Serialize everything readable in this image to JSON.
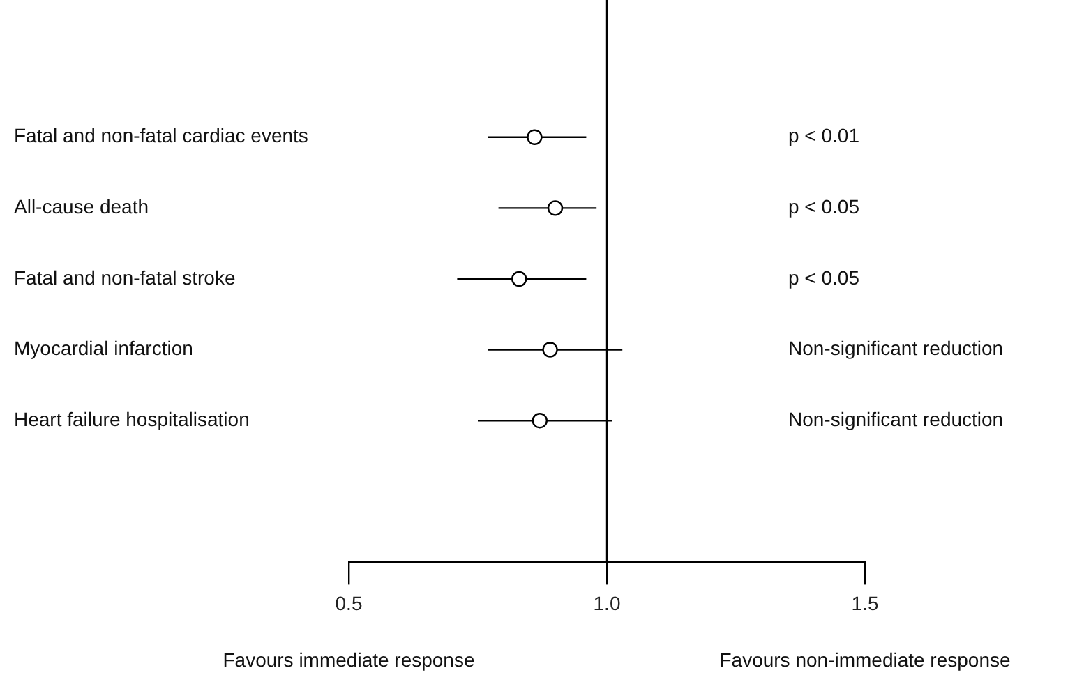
{
  "chart_data": {
    "type": "scatter",
    "orientation": "horizontal",
    "categories": [
      "Fatal and non-fatal cardiac events",
      "All-cause death",
      "Fatal and non-fatal stroke",
      "Myocardial infarction",
      "Heart failure hospitalisation"
    ],
    "values": [
      0.86,
      0.9,
      0.83,
      0.89,
      0.87
    ],
    "errors": [
      [
        0.77,
        0.96
      ],
      [
        0.79,
        0.98
      ],
      [
        0.71,
        0.96
      ],
      [
        0.77,
        1.03
      ],
      [
        0.75,
        1.01
      ]
    ],
    "color": "#000000",
    "marker": "circle",
    "legend": false,
    "grid": false,
    "xlim": [
      0.5,
      1.5
    ],
    "xticks": [
      0.5,
      {
        "value": 1,
        "label": "1.0"
      },
      1.5
    ],
    "ref_lines": [
      {
        "axis": "x",
        "value": 1,
        "label": null
      }
    ],
    "annotations": [
      "p < 0.01",
      "p < 0.05",
      "p < 0.05",
      "Non-significant reduction",
      "Non-significant reduction",
      "Favours immediate response",
      "Favours non-immediate response"
    ]
  }
}
